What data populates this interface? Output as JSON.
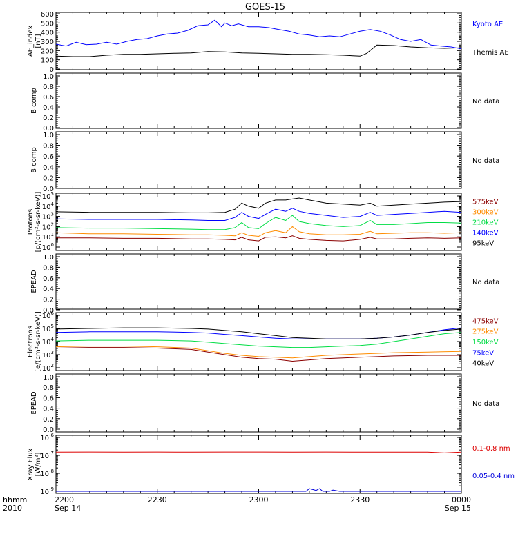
{
  "title": "GOES-15",
  "x_axis": {
    "corner_label_1": "hhmm",
    "corner_label_2": "2010",
    "ticks": [
      {
        "time": "2200",
        "date": "Sep 14"
      },
      {
        "time": "2230",
        "date": ""
      },
      {
        "time": "2300",
        "date": ""
      },
      {
        "time": "2330",
        "date": ""
      },
      {
        "time": "0000",
        "date": "Sep 15"
      }
    ]
  },
  "chart_data": [
    {
      "id": "ae",
      "type": "line",
      "ylabel": [
        "AE_index",
        "[nT]"
      ],
      "ylim": [
        0,
        600
      ],
      "ticks": [
        "0",
        "100",
        "200",
        "300",
        "400",
        "500",
        "600"
      ],
      "x_range_minutes": [
        0,
        120
      ],
      "series": [
        {
          "name": "Kyoto AE",
          "color": "#0000ff",
          "x": [
            0,
            3,
            6,
            9,
            12,
            15,
            18,
            21,
            24,
            27,
            30,
            33,
            36,
            39,
            42,
            45,
            47,
            49,
            50,
            52,
            54,
            57,
            60,
            63,
            66,
            69,
            72,
            75,
            78,
            81,
            84,
            87,
            90,
            93,
            96,
            99,
            102,
            105,
            108,
            111,
            114,
            117,
            120
          ],
          "y": [
            270,
            250,
            290,
            265,
            270,
            290,
            270,
            300,
            320,
            330,
            360,
            380,
            390,
            420,
            470,
            480,
            530,
            460,
            500,
            470,
            490,
            460,
            460,
            450,
            430,
            410,
            380,
            370,
            350,
            360,
            350,
            380,
            410,
            430,
            410,
            370,
            320,
            300,
            320,
            260,
            250,
            240,
            220
          ]
        },
        {
          "name": "Themis AE",
          "color": "#000000",
          "x": [
            0,
            5,
            10,
            15,
            20,
            25,
            30,
            35,
            40,
            45,
            50,
            55,
            60,
            65,
            70,
            75,
            80,
            85,
            90,
            92,
            95,
            100,
            105,
            110,
            115,
            120
          ],
          "y": [
            140,
            135,
            135,
            150,
            160,
            160,
            165,
            170,
            175,
            190,
            185,
            175,
            170,
            165,
            160,
            160,
            155,
            150,
            140,
            170,
            260,
            255,
            240,
            230,
            225,
            230
          ]
        }
      ]
    },
    {
      "id": "b1",
      "type": "line",
      "ylabel": [
        "B comp"
      ],
      "ylim": [
        0,
        1
      ],
      "ticks": [
        "0.0",
        "0.2",
        "0.4",
        "0.6",
        "0.8",
        "1.0"
      ],
      "note": "No data",
      "series": []
    },
    {
      "id": "b2",
      "type": "line",
      "ylabel": [
        "B comp"
      ],
      "ylim": [
        0,
        1
      ],
      "ticks": [
        "0.0",
        "0.2",
        "0.4",
        "0.6",
        "0.8",
        "1.0"
      ],
      "note": "No data",
      "series": []
    },
    {
      "id": "protons",
      "type": "line",
      "log": true,
      "ylabel": [
        "Protons",
        "[p/(cm²-s-sr-keV)]"
      ],
      "ylim_exp": [
        0,
        5
      ],
      "ticks": [
        "0",
        "1",
        "2",
        "3",
        "4",
        "5"
      ],
      "series": [
        {
          "name": "575keV",
          "color": "#8b0000",
          "x": [
            0,
            10,
            20,
            30,
            40,
            45,
            50,
            53,
            55,
            57,
            60,
            62,
            65,
            68,
            70,
            72,
            75,
            80,
            85,
            90,
            93,
            95,
            100,
            105,
            110,
            115,
            120
          ],
          "y": [
            0.9,
            0.9,
            0.85,
            0.85,
            0.8,
            0.8,
            0.75,
            0.7,
            0.95,
            0.7,
            0.6,
            0.95,
            1.0,
            0.9,
            1.1,
            0.85,
            0.75,
            0.65,
            0.6,
            0.75,
            0.95,
            0.8,
            0.8,
            0.85,
            0.9,
            0.85,
            0.9
          ]
        },
        {
          "name": "300keV",
          "color": "#ff8c00",
          "x": [
            0,
            10,
            20,
            30,
            40,
            45,
            50,
            53,
            55,
            57,
            60,
            62,
            65,
            68,
            70,
            72,
            75,
            80,
            85,
            90,
            93,
            95,
            100,
            105,
            110,
            115,
            120
          ],
          "y": [
            1.4,
            1.3,
            1.3,
            1.25,
            1.2,
            1.2,
            1.15,
            1.1,
            1.4,
            1.15,
            1.05,
            1.4,
            1.6,
            1.4,
            2.0,
            1.5,
            1.3,
            1.2,
            1.2,
            1.25,
            1.55,
            1.3,
            1.35,
            1.4,
            1.4,
            1.35,
            1.4
          ]
        },
        {
          "name": "210keV",
          "color": "#00dd44",
          "x": [
            0,
            10,
            20,
            30,
            40,
            45,
            50,
            53,
            55,
            57,
            60,
            62,
            65,
            68,
            70,
            72,
            75,
            80,
            85,
            90,
            93,
            95,
            100,
            105,
            110,
            115,
            120
          ],
          "y": [
            1.9,
            1.85,
            1.85,
            1.8,
            1.75,
            1.7,
            1.7,
            1.9,
            2.4,
            1.9,
            1.8,
            2.3,
            2.9,
            2.6,
            3.1,
            2.5,
            2.3,
            2.1,
            2.0,
            2.1,
            2.6,
            2.2,
            2.2,
            2.3,
            2.4,
            2.4,
            2.35
          ]
        },
        {
          "name": "140keV",
          "color": "#0000ff",
          "x": [
            0,
            10,
            20,
            30,
            40,
            45,
            50,
            53,
            55,
            57,
            60,
            62,
            65,
            68,
            70,
            72,
            75,
            80,
            85,
            90,
            93,
            95,
            100,
            105,
            110,
            115,
            120
          ],
          "y": [
            2.75,
            2.7,
            2.7,
            2.7,
            2.65,
            2.6,
            2.6,
            2.9,
            3.4,
            3.0,
            2.8,
            3.2,
            3.7,
            3.5,
            3.8,
            3.5,
            3.3,
            3.1,
            2.9,
            3.0,
            3.4,
            3.1,
            3.2,
            3.3,
            3.4,
            3.5,
            3.4
          ]
        },
        {
          "name": "95keV",
          "color": "#000000",
          "x": [
            0,
            10,
            20,
            30,
            40,
            45,
            50,
            53,
            55,
            57,
            60,
            62,
            65,
            68,
            70,
            72,
            75,
            80,
            85,
            90,
            93,
            95,
            100,
            105,
            110,
            115,
            120
          ],
          "y": [
            3.45,
            3.4,
            3.4,
            3.4,
            3.35,
            3.35,
            3.4,
            3.7,
            4.3,
            4.0,
            3.8,
            4.3,
            4.6,
            4.6,
            4.7,
            4.8,
            4.6,
            4.3,
            4.2,
            4.1,
            4.3,
            4.0,
            4.1,
            4.2,
            4.3,
            4.4,
            4.45
          ]
        }
      ]
    },
    {
      "id": "epead1",
      "type": "line",
      "ylabel": [
        "EPEAD"
      ],
      "ylim": [
        0,
        1
      ],
      "ticks": [
        "0.0",
        "0.2",
        "0.4",
        "0.6",
        "0.8",
        "1.0"
      ],
      "note": "No data",
      "series": []
    },
    {
      "id": "electrons",
      "type": "line",
      "log": true,
      "ylabel": [
        "Electrons",
        "[e/(cm²-s-sr-keV)]"
      ],
      "ylim_exp": [
        2,
        6
      ],
      "ticks": [
        "2",
        "3",
        "4",
        "5",
        "6"
      ],
      "series": [
        {
          "name": "475keV",
          "color": "#8b0000",
          "x": [
            0,
            10,
            20,
            30,
            40,
            45,
            50,
            55,
            60,
            65,
            70,
            75,
            80,
            85,
            90,
            95,
            100,
            110,
            120
          ],
          "y": [
            3.5,
            3.55,
            3.55,
            3.5,
            3.4,
            3.2,
            3.0,
            2.8,
            2.7,
            2.65,
            2.5,
            2.6,
            2.7,
            2.75,
            2.8,
            2.85,
            2.9,
            2.95,
            2.95
          ]
        },
        {
          "name": "275keV",
          "color": "#ff8c00",
          "x": [
            0,
            10,
            20,
            30,
            40,
            45,
            50,
            55,
            60,
            65,
            70,
            75,
            80,
            85,
            90,
            95,
            100,
            110,
            120
          ],
          "y": [
            3.6,
            3.65,
            3.65,
            3.6,
            3.5,
            3.3,
            3.1,
            2.95,
            2.85,
            2.8,
            2.75,
            2.85,
            2.95,
            3.0,
            3.05,
            3.1,
            3.15,
            3.2,
            3.25
          ]
        },
        {
          "name": "150keV",
          "color": "#00dd44",
          "x": [
            0,
            10,
            20,
            30,
            40,
            45,
            50,
            55,
            60,
            65,
            70,
            75,
            80,
            85,
            90,
            95,
            100,
            105,
            110,
            115,
            120
          ],
          "y": [
            4.05,
            4.1,
            4.1,
            4.1,
            4.05,
            3.95,
            3.85,
            3.75,
            3.65,
            3.6,
            3.55,
            3.55,
            3.6,
            3.65,
            3.7,
            3.8,
            4.0,
            4.2,
            4.4,
            4.6,
            4.7
          ]
        },
        {
          "name": "75keV",
          "color": "#0000ff",
          "x": [
            0,
            10,
            20,
            30,
            40,
            45,
            50,
            55,
            60,
            65,
            70,
            75,
            80,
            85,
            90,
            95,
            100,
            105,
            110,
            115,
            120
          ],
          "y": [
            4.7,
            4.75,
            4.75,
            4.75,
            4.7,
            4.65,
            4.55,
            4.45,
            4.35,
            4.25,
            4.2,
            4.2,
            4.2,
            4.2,
            4.2,
            4.25,
            4.35,
            4.5,
            4.7,
            4.9,
            5.05
          ]
        },
        {
          "name": "40keV",
          "color": "#000000",
          "x": [
            0,
            10,
            20,
            30,
            40,
            45,
            50,
            55,
            60,
            65,
            70,
            75,
            80,
            85,
            90,
            95,
            100,
            105,
            110,
            115,
            120
          ],
          "y": [
            4.95,
            5.0,
            5.05,
            5.05,
            5.0,
            4.95,
            4.85,
            4.75,
            4.6,
            4.45,
            4.3,
            4.25,
            4.2,
            4.2,
            4.2,
            4.25,
            4.35,
            4.5,
            4.7,
            4.85,
            4.95
          ]
        }
      ]
    },
    {
      "id": "epead2",
      "type": "line",
      "ylabel": [
        "EPEAD"
      ],
      "ylim": [
        0,
        1
      ],
      "ticks": [
        "0.0",
        "0.2",
        "0.4",
        "0.6",
        "0.8",
        "1.0"
      ],
      "note": "No data",
      "series": []
    },
    {
      "id": "xray",
      "type": "line",
      "log": true,
      "ylabel": [
        "Xray Flux",
        "[W/m²]"
      ],
      "ylim_exp": [
        -9,
        -6
      ],
      "ticks": [
        "-9",
        "-8",
        "-7",
        "-6"
      ],
      "series": [
        {
          "name": "0.1-0.8 nm",
          "color": "#dd0000",
          "x": [
            0,
            10,
            20,
            30,
            40,
            50,
            60,
            70,
            80,
            90,
            100,
            110,
            115,
            120
          ],
          "y": [
            -6.82,
            -6.81,
            -6.82,
            -6.81,
            -6.82,
            -6.81,
            -6.81,
            -6.82,
            -6.81,
            -6.82,
            -6.82,
            -6.82,
            -6.86,
            -6.82
          ]
        },
        {
          "name": "0.05-0.4 nm",
          "color": "#0000dd",
          "x": [
            0,
            5,
            10,
            20,
            30,
            40,
            50,
            60,
            70,
            74,
            75,
            76,
            77,
            78,
            79,
            81,
            82,
            84,
            90,
            100,
            110,
            120
          ],
          "y": [
            -9,
            -9,
            -9,
            -9,
            -9,
            -9,
            -9,
            -9,
            -9,
            -9,
            -8.85,
            -8.9,
            -8.95,
            -8.85,
            -9,
            -9,
            -8.93,
            -9,
            -9,
            -9,
            -9,
            -9
          ]
        }
      ]
    }
  ]
}
